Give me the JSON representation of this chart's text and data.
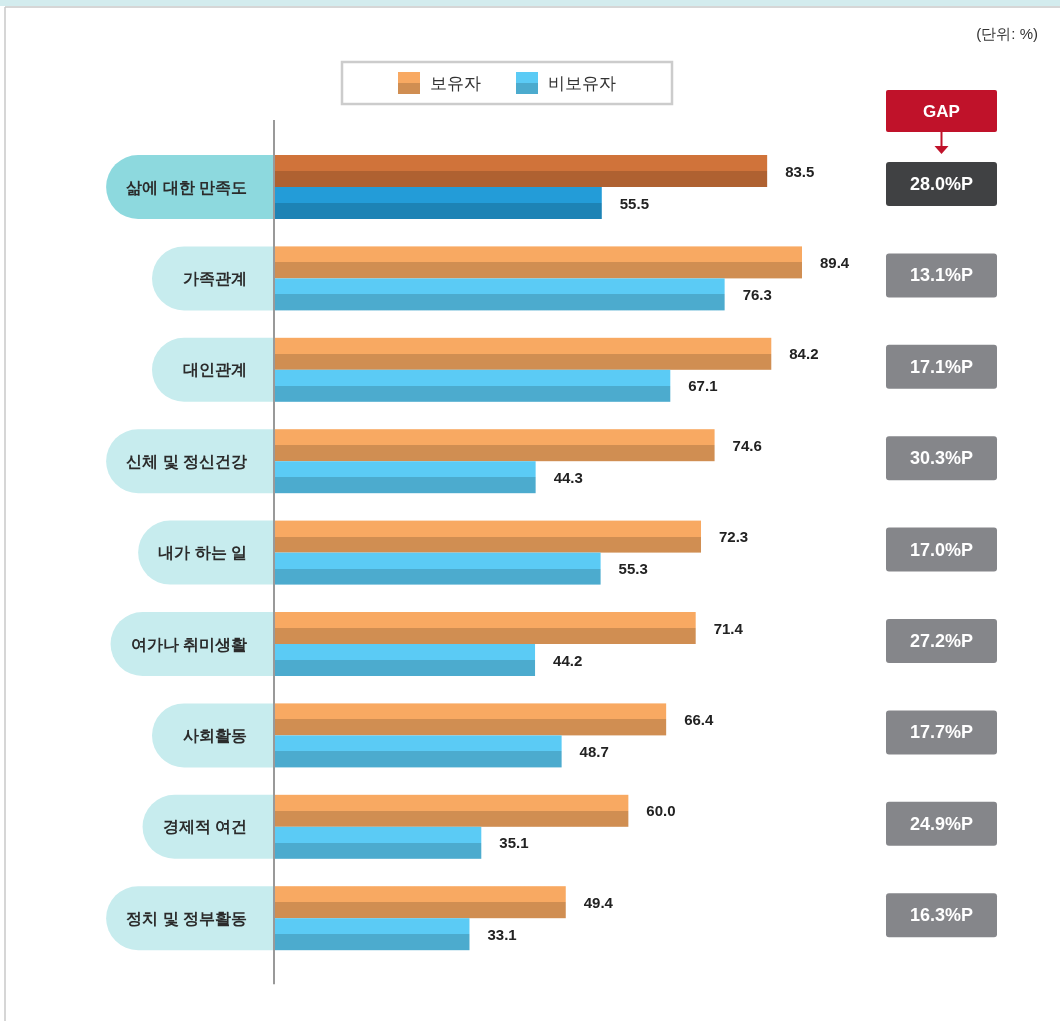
{
  "chart_data": {
    "type": "bar",
    "orientation": "horizontal",
    "categories": [
      "삶에 대한 만족도",
      "가족관계",
      "대인관계",
      "신체 및 정신건강",
      "내가 하는 일",
      "여가나 취미생활",
      "사회활동",
      "경제적 여건",
      "정치 및 정부활동"
    ],
    "series": [
      {
        "name": "보유자",
        "color": "#f8a962",
        "colors": [
          "#d0733a",
          "#f8a962",
          "#f8a962",
          "#f8a962",
          "#f8a962",
          "#f8a962",
          "#f8a962",
          "#f8a962",
          "#f8a962"
        ],
        "values": [
          83.5,
          89.4,
          84.2,
          74.6,
          72.3,
          71.4,
          66.4,
          60.0,
          49.4
        ],
        "value_labels": [
          "83.5",
          "89.4",
          "84.2",
          "74.6",
          "72.3",
          "71.4",
          "66.4",
          "60.0",
          "49.4"
        ]
      },
      {
        "name": "비보유자",
        "color": "#5bcbf5",
        "colors": [
          "#239cd8",
          "#5bcbf5",
          "#5bcbf5",
          "#5bcbf5",
          "#5bcbf5",
          "#5bcbf5",
          "#5bcbf5",
          "#5bcbf5",
          "#5bcbf5"
        ],
        "values": [
          55.5,
          76.3,
          67.1,
          44.3,
          55.3,
          44.2,
          48.7,
          35.1,
          33.1
        ],
        "value_labels": [
          "55.5",
          "76.3",
          "67.1",
          "44.3",
          "55.3",
          "44.2",
          "48.7",
          "35.1",
          "33.1"
        ]
      }
    ],
    "legend": "top",
    "tick_labels": "y",
    "annotations": [
      "(단위: %)",
      "GAP",
      "28.0%P",
      "13.1%P",
      "17.1%P",
      "30.3%P",
      "17.0%P",
      "27.2%P",
      "17.7%P",
      "24.9%P",
      "16.3%P"
    ]
  }
}
